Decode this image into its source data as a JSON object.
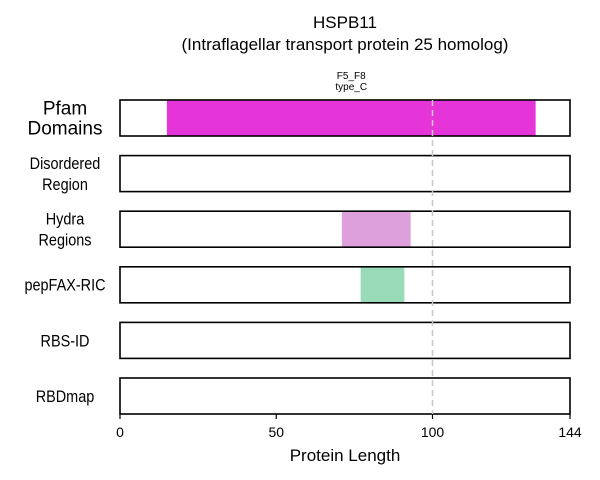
{
  "chart_data": {
    "type": "bar",
    "title_line1": "HSPB11",
    "title_line2": "(Intraflagellar transport protein 25 homolog)",
    "xlabel": "Protein Length",
    "xlim": [
      0,
      144
    ],
    "xticks": [
      "0",
      "50",
      "100",
      "144"
    ],
    "xtick_values": [
      0,
      50,
      100,
      144
    ],
    "reference_line_x": 100,
    "tracks": [
      {
        "label_lines": [
          "Pfam",
          "Domains"
        ],
        "segments": [
          {
            "start": 15,
            "end": 133,
            "color": "#e535d8",
            "label_lines": [
              "F5_F8",
              "type_C"
            ]
          }
        ]
      },
      {
        "label_lines": [
          "Disordered",
          "Region"
        ],
        "segments": []
      },
      {
        "label_lines": [
          "Hydra",
          "Regions"
        ],
        "segments": [
          {
            "start": 71,
            "end": 93,
            "color": "#dda0dd"
          }
        ]
      },
      {
        "label_lines": [
          "pepFAX-RIC"
        ],
        "segments": [
          {
            "start": 77,
            "end": 91,
            "color": "#99dbb8"
          }
        ]
      },
      {
        "label_lines": [
          "RBS-ID"
        ],
        "segments": []
      },
      {
        "label_lines": [
          "RBDmap"
        ],
        "segments": []
      }
    ]
  }
}
